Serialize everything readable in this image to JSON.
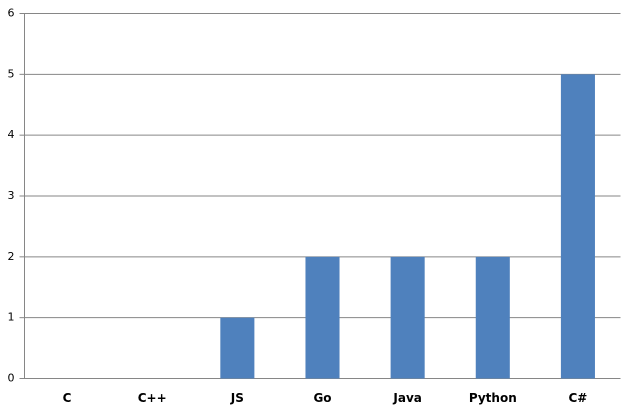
{
  "chart_data": {
    "type": "bar",
    "categories": [
      "C",
      "C++",
      "JS",
      "Go",
      "Java",
      "Python",
      "C#"
    ],
    "values": [
      0,
      0,
      1,
      2,
      2,
      2,
      5
    ],
    "color": "#4f81bd",
    "ylim": [
      0,
      6
    ],
    "yticks": [
      0,
      1,
      2,
      3,
      4,
      5,
      6
    ],
    "grid": true
  }
}
